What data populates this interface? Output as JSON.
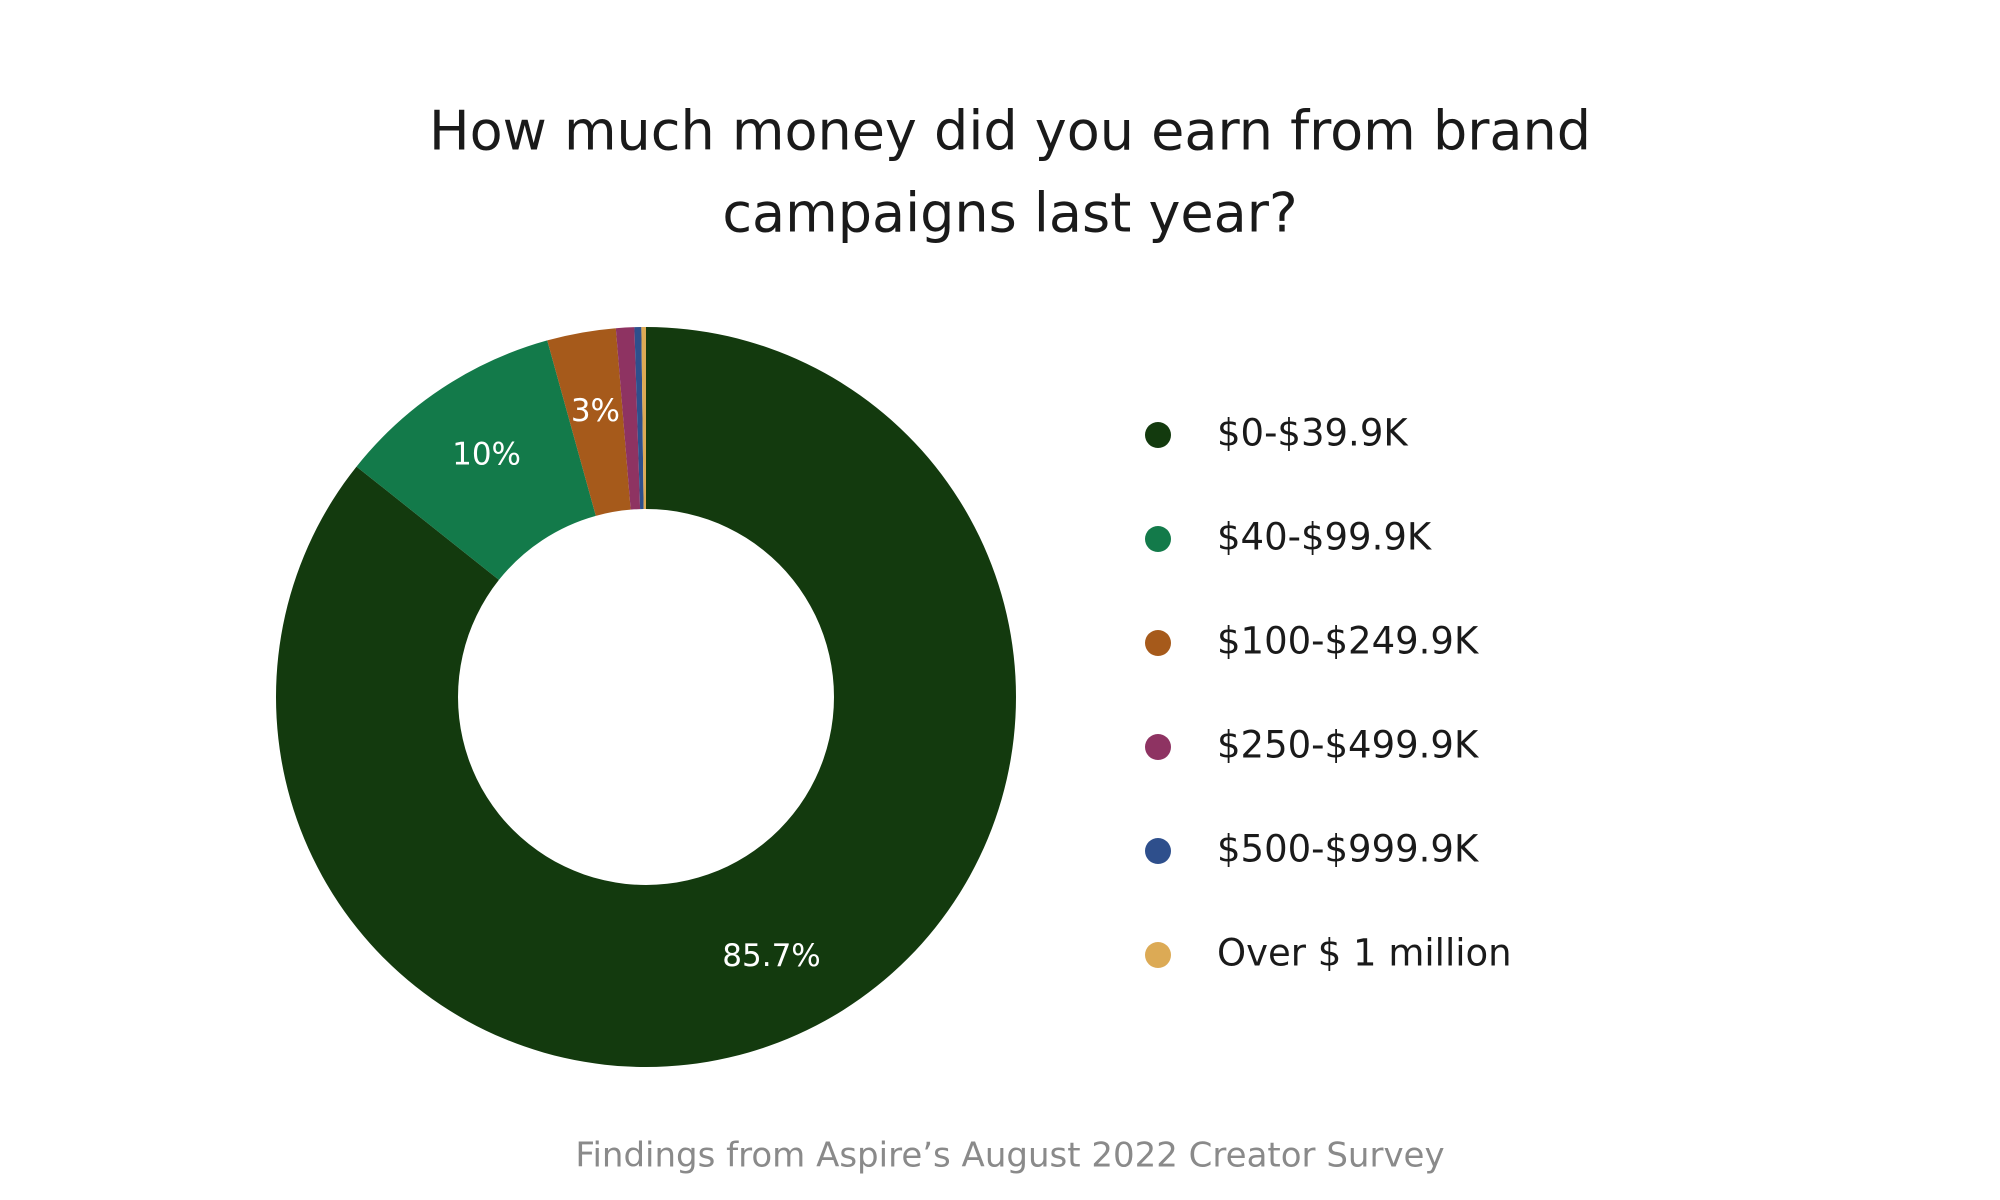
{
  "chart_data": {
    "type": "donut",
    "title": [
      "How much money did you earn from brand",
      "campaigns last year?"
    ],
    "categories": [
      "$0-$39.9K",
      "$40-$99.9K",
      "$100-$249.9K",
      "$250-$499.9K",
      "$500-$999.9K",
      "Over $ 1 million"
    ],
    "values": [
      85.7,
      10,
      3,
      0.8,
      0.3,
      0.2
    ],
    "value_labels": [
      "85.7%",
      "10%",
      "3%",
      null,
      null,
      null
    ],
    "colors": [
      "#133a0e",
      "#137a4a",
      "#a65a1b",
      "#8e3362",
      "#2e4f8c",
      "#dcaa55"
    ],
    "legend": "right",
    "footnote": "Findings from Aspire’s August 2022 Creator Survey"
  }
}
